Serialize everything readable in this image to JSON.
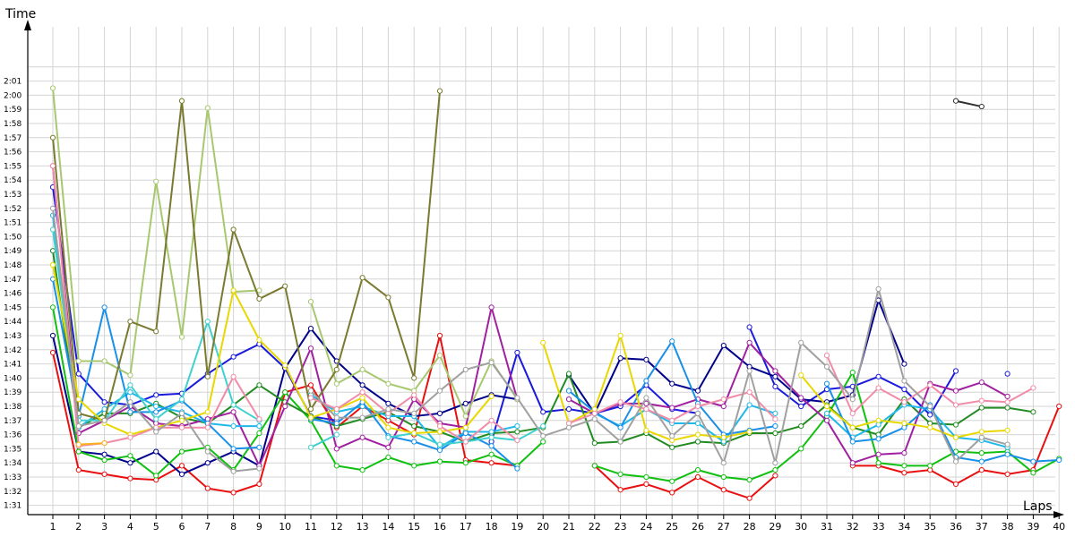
{
  "chart_data": {
    "type": "line",
    "ylabel": "Time",
    "xlabel": "Laps",
    "x": [
      1,
      2,
      3,
      4,
      5,
      6,
      7,
      8,
      9,
      10,
      11,
      12,
      13,
      14,
      15,
      16,
      17,
      18,
      19,
      20,
      21,
      22,
      23,
      24,
      25,
      26,
      27,
      28,
      29,
      30,
      31,
      32,
      33,
      34,
      35,
      36,
      37,
      38,
      39,
      40
    ],
    "xlim": [
      1,
      40
    ],
    "ylim": [
      "1:30.5",
      "2:02"
    ],
    "y_tick_labels": [
      "1:31",
      "1:32",
      "1:33",
      "1:34",
      "1:35",
      "1:36",
      "1:37",
      "1:38",
      "1:39",
      "1:40",
      "1:41",
      "1:42",
      "1:43",
      "1:44",
      "1:45",
      "1:46",
      "1:47",
      "1:48",
      "1:49",
      "1:50",
      "1:51",
      "1:52",
      "1:53",
      "1:54",
      "1:55",
      "1:56",
      "1:57",
      "1:58",
      "1:59",
      "2:00",
      "2:01"
    ],
    "x_tick_labels": [
      "1",
      "2",
      "3",
      "4",
      "5",
      "6",
      "7",
      "8",
      "9",
      "10",
      "11",
      "12",
      "13",
      "14",
      "15",
      "16",
      "17",
      "18",
      "19",
      "20",
      "21",
      "22",
      "23",
      "24",
      "25",
      "26",
      "27",
      "28",
      "29",
      "30",
      "31",
      "32",
      "33",
      "34",
      "35",
      "36",
      "37",
      "38",
      "39",
      "40"
    ],
    "grid": true,
    "legend": "none",
    "series": [
      {
        "color": "#e81010",
        "values": [
          "1:41.8",
          "1:33.5",
          "1:33.2",
          "1:32.9",
          "1:32.8",
          "1:33.8",
          "1:32.2",
          "1:31.9",
          "1:32.5",
          "1:39",
          "1:39.5",
          "1:36.5",
          "1:38",
          "1:37",
          "1:36",
          "1:43",
          "1:34.2",
          "1:34",
          "1:33.8",
          null,
          null,
          "1:33.8",
          "1:32.1",
          "1:32.5",
          "1:31.9",
          "1:33",
          "1:32.1",
          "1:31.5",
          "1:33.1",
          null,
          null,
          "1:33.8",
          "1:33.8",
          "1:33.3",
          "1:33.5",
          "1:32.5",
          "1:33.5",
          "1:33.2",
          "1:33.5",
          "1:38"
        ]
      },
      {
        "color": "#1a1adc",
        "values": [
          "1:53.5",
          "1:40.3",
          "1:38.3",
          "1:38.1",
          "1:38.8",
          "1:38.9",
          "1:40.3",
          "1:41.5",
          "1:42.4",
          "1:40.7",
          "1:37.3",
          "1:37",
          null,
          null,
          null,
          null,
          null,
          "1:35.5",
          "1:41.8",
          "1:37.6",
          "1:37.8",
          "1:37.5",
          "1:38",
          "1:39.5",
          "1:37.8",
          "1:37.5",
          null,
          "1:43.6",
          "1:39.4",
          "1:38",
          "1:39.2",
          "1:39.4",
          "1:40.1",
          "1:39.2",
          "1:37.4",
          "1:40.5",
          null,
          "1:40.3",
          null,
          null
        ]
      },
      {
        "color": "#00008b",
        "values": [
          "1:43",
          "1:34.8",
          "1:34.6",
          "1:34",
          "1:34.8",
          "1:33.2",
          "1:34",
          "1:34.8",
          "1:33.8",
          "1:40.7",
          "1:43.5",
          "1:41.2",
          "1:39.5",
          "1:38.2",
          "1:37.3",
          "1:37.5",
          "1:38.2",
          "1:38.8",
          "1:38.5",
          null,
          "1:40.2",
          "1:37.5",
          "1:41.4",
          "1:41.3",
          "1:39.6",
          "1:39.1",
          "1:42.3",
          "1:40.8",
          "1:40.1",
          "1:38.5",
          "1:38.3",
          "1:38.8",
          "1:45.5",
          "1:41",
          null,
          null,
          null,
          null,
          null,
          null
        ]
      },
      {
        "color": "#10c010",
        "values": [
          "1:45",
          "1:34.8",
          "1:34.2",
          "1:34.5",
          "1:33.1",
          "1:34.8",
          "1:35.1",
          "1:33.5",
          "1:36.1",
          "1:39",
          "1:37",
          "1:33.8",
          "1:33.5",
          "1:34.4",
          "1:33.8",
          "1:34.1",
          "1:34",
          "1:34.6",
          "1:33.8",
          "1:35.5",
          null,
          "1:33.8",
          "1:33.2",
          "1:33",
          "1:32.7",
          "1:33.5",
          "1:33",
          "1:32.8",
          "1:33.5",
          "1:35",
          "1:37.3",
          "1:40.4",
          "1:34",
          "1:33.8",
          "1:33.8",
          "1:34.8",
          "1:34.7",
          "1:34.8",
          "1:33.3",
          "1:34.3"
        ]
      },
      {
        "color": "#228b22",
        "values": [
          "1:49",
          "1:36.5",
          "1:37.5",
          "1:37.5",
          "1:38.2",
          "1:37.2",
          "1:36.8",
          "1:38.1",
          "1:39.5",
          "1:38.3",
          "1:37.3",
          "1:36.6",
          "1:37.1",
          "1:37.6",
          "1:36.6",
          "1:36.2",
          "1:35.5",
          "1:36.1",
          "1:36.2",
          "1:36.5",
          "1:40.3",
          "1:35.4",
          "1:35.5",
          "1:36.1",
          "1:35.1",
          "1:35.5",
          "1:35.4",
          "1:36.1",
          "1:36.1",
          "1:36.6",
          "1:38.1",
          "1:36.5",
          "1:36",
          "1:38.5",
          "1:36.8",
          "1:36.7",
          "1:37.9",
          "1:37.9",
          "1:37.6",
          null
        ]
      },
      {
        "color": "#a020a0",
        "values": [
          "1:55",
          "1:36.1",
          "1:37",
          "1:38",
          "1:36.8",
          "1:36.6",
          "1:37.1",
          "1:37.6",
          "1:33.8",
          "1:38",
          "1:42.1",
          "1:35",
          "1:35.8",
          "1:35.1",
          "1:38.5",
          "1:36.8",
          "1:36.5",
          "1:45",
          "1:38.5",
          null,
          "1:38.5",
          "1:37.5",
          "1:38.2",
          "1:38.2",
          "1:37.9",
          "1:38.5",
          "1:38",
          "1:42.5",
          "1:40.5",
          "1:38.6",
          "1:37",
          "1:34",
          "1:34.6",
          "1:34.7",
          "1:39.6",
          "1:39.1",
          "1:39.7",
          "1:38.7",
          null,
          null
        ]
      },
      {
        "color": "#20b8e8",
        "values": [
          "1:51.5",
          "1:36.5",
          "1:37.8",
          "1:39",
          "1:38",
          "1:37.6",
          "1:36.8",
          "1:36.6",
          "1:36.6",
          null,
          "1:38.8",
          "1:37.6",
          "1:38",
          "1:37.3",
          "1:37.3",
          "1:35.1",
          "1:36.2",
          "1:36.2",
          "1:36.6",
          null,
          null,
          "1:37.5",
          "1:36.6",
          "1:37.8",
          "1:36.8",
          "1:36.8",
          "1:35.5",
          "1:38.1",
          "1:37.5",
          null,
          "1:37.5",
          "1:35.8",
          "1:36.7",
          "1:38.1",
          "1:37.8",
          "1:35.8",
          "1:35.6",
          "1:35.1",
          null,
          null
        ]
      },
      {
        "color": "#1890e8",
        "values": [
          "1:47",
          "1:37.3",
          "1:45",
          "1:37.6",
          "1:37.6",
          "1:38.4",
          "1:36.8",
          "1:35",
          "1:35.1",
          null,
          "1:37.1",
          "1:36.8",
          "1:38.3",
          "1:35.9",
          "1:35.5",
          "1:34.9",
          "1:36.1",
          "1:35.2",
          "1:33.6",
          null,
          "1:39.1",
          "1:37.6",
          "1:36.5",
          "1:39.8",
          "1:42.6",
          "1:38.2",
          "1:36",
          "1:36.3",
          "1:36.6",
          null,
          "1:39.6",
          "1:35.5",
          "1:35.7",
          "1:36.5",
          "1:38.1",
          "1:34.4",
          "1:34.1",
          "1:34.6",
          "1:34.1",
          "1:34.2"
        ]
      },
      {
        "color": "#40d0d0",
        "values": [
          "1:50.5",
          "1:37",
          "1:37",
          "1:39.5",
          "1:37.1",
          "1:38.5",
          "1:44",
          "1:38.1",
          "1:37",
          null,
          "1:35.1",
          "1:36",
          null,
          "1:35.8",
          "1:36.1",
          "1:35.3",
          "1:35.5",
          "1:35.8",
          "1:35.6",
          "1:36.6",
          null,
          null,
          null,
          null,
          null,
          null,
          null,
          null,
          null,
          null,
          null,
          null,
          null,
          null,
          null,
          null,
          null,
          null,
          null,
          null
        ]
      },
      {
        "color": "#a8c870",
        "values": [
          "2:00.5",
          "1:41.2",
          "1:41.2",
          "1:40.2",
          "1:53.9",
          "1:42.9",
          "1:59.1",
          "1:46.1",
          "1:46.2",
          null,
          "1:45.4",
          "1:39.6",
          "1:40.6",
          "1:39.6",
          "1:39.1",
          "1:41.6",
          "1:37.3",
          "1:41.2",
          "1:38.5",
          null,
          null,
          null,
          null,
          null,
          null,
          null,
          null,
          null,
          null,
          null,
          null,
          null,
          null,
          null,
          null,
          null,
          null,
          null,
          null,
          null
        ]
      },
      {
        "color": "#7a7a30",
        "values": [
          "1:57",
          "1:37.5",
          "1:37",
          "1:44",
          "1:43.3",
          "1:59.6",
          "1:40.1",
          "1:50.5",
          "1:45.6",
          "1:46.5",
          "1:37.8",
          "1:40.6",
          "1:47.1",
          "1:45.7",
          "1:40",
          "2:00.3",
          null,
          null,
          null,
          null,
          null,
          null,
          null,
          null,
          null,
          null,
          null,
          null,
          null,
          null,
          null,
          null,
          null,
          null,
          null,
          null,
          null,
          null,
          null,
          null
        ]
      },
      {
        "color": "#e8d800",
        "values": [
          "1:48",
          "1:38.5",
          "1:36.8",
          "1:36",
          "1:36.5",
          "1:37",
          "1:37.6",
          "1:46.2",
          "1:42.7",
          "1:40.9",
          "1:37.2",
          "1:37.8",
          "1:38.6",
          "1:36.5",
          "1:36.1",
          "1:36.2",
          "1:36.5",
          "1:38.7",
          null,
          "1:42.5",
          "1:36.8",
          "1:37.8",
          "1:43",
          "1:36.3",
          "1:35.6",
          "1:36",
          "1:35.8",
          "1:36.2",
          null,
          "1:40.2",
          "1:38",
          "1:36.5",
          "1:37",
          "1:36.8",
          "1:36.5",
          "1:35.8",
          "1:36.2",
          "1:36.3",
          null,
          null
        ]
      },
      {
        "color": "#f08ca8",
        "values": [
          "1:55",
          "1:35.2",
          "1:35.4",
          "1:35.8",
          "1:36.5",
          "1:36.5",
          "1:36.5",
          "1:40.1",
          "1:37.1",
          null,
          "1:38.6",
          "1:37.8",
          "1:39",
          "1:37.5",
          "1:38.8",
          "1:36.6",
          "1:35.5",
          "1:37",
          "1:35.6",
          null,
          "1:36.8",
          "1:37.5",
          "1:38.3",
          "1:37.8",
          "1:37",
          "1:38",
          "1:38.5",
          "1:39",
          "1:37.1",
          null,
          "1:41.6",
          "1:37.5",
          "1:39.3",
          "1:38.3",
          "1:39.5",
          "1:38.1",
          "1:38.4",
          "1:38.3",
          "1:39.3",
          null
        ]
      },
      {
        "color": "#a0a0a0",
        "values": [
          "1:52",
          "1:36.6",
          "1:37",
          "1:38.3",
          "1:36.2",
          "1:37.5",
          "1:34.8",
          "1:33.4",
          "1:33.6",
          null,
          "1:39.1",
          "1:37.2",
          "1:37.2",
          "1:37.8",
          "1:37.5",
          "1:39.1",
          "1:40.6",
          "1:41.1",
          "1:38.6",
          "1:35.9",
          "1:36.5",
          "1:37.1",
          "1:35.5",
          "1:38.6",
          "1:35.9",
          "1:37.5",
          "1:34",
          "1:40.5",
          "1:34",
          "1:42.5",
          "1:40.8",
          "1:38.5",
          "1:46.3",
          "1:39.8",
          "1:38",
          "1:34.1",
          "1:35.8",
          "1:35.3",
          null,
          null
        ]
      },
      {
        "color": "#303030",
        "values": [
          null,
          null,
          null,
          null,
          null,
          null,
          null,
          null,
          null,
          null,
          null,
          null,
          null,
          null,
          null,
          null,
          null,
          null,
          null,
          null,
          null,
          null,
          null,
          null,
          null,
          null,
          null,
          null,
          null,
          null,
          null,
          null,
          null,
          null,
          null,
          "1:59.6",
          "1:59.2",
          null,
          null,
          null
        ]
      },
      {
        "color": "#f8b020",
        "values": [
          null,
          "1:35.3",
          "1:35.4",
          null,
          null,
          null,
          null,
          null,
          null,
          null,
          null,
          null,
          null,
          null,
          null,
          null,
          null,
          null,
          null,
          null,
          null,
          null,
          null,
          null,
          null,
          null,
          null,
          null,
          null,
          null,
          null,
          null,
          null,
          null,
          null,
          null,
          null,
          null,
          null,
          null
        ]
      }
    ]
  }
}
